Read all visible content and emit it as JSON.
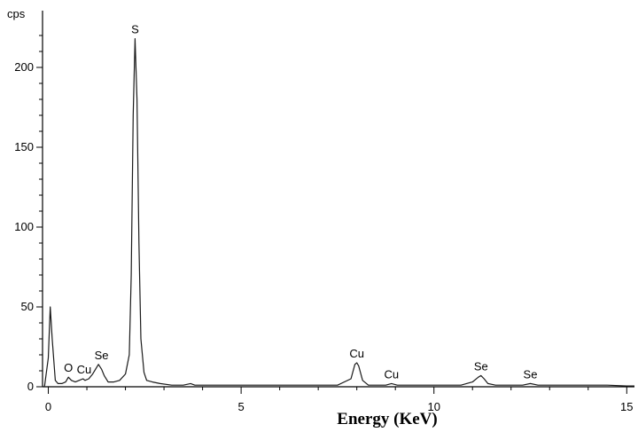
{
  "chart_data": {
    "type": "line",
    "title": "",
    "xlabel": "Energy (KeV)",
    "ylabel": "cps",
    "xlim": [
      -0.15,
      15.2
    ],
    "ylim": [
      0,
      220
    ],
    "x_ticks": [
      0,
      5,
      10,
      15
    ],
    "y_ticks": [
      0,
      50,
      100,
      150,
      200
    ],
    "grid": false,
    "legend": "none",
    "line_color": "#1a1a1a",
    "series": [
      {
        "x": [
          -0.1,
          0.0,
          0.05,
          0.1,
          0.18,
          0.25,
          0.35,
          0.45,
          0.52,
          0.6,
          0.7,
          0.8,
          0.9,
          0.95,
          1.05,
          1.15,
          1.25,
          1.3,
          1.38,
          1.45,
          1.55,
          1.7,
          1.85,
          2.0,
          2.1,
          2.15,
          2.2,
          2.25,
          2.3,
          2.35,
          2.4,
          2.48,
          2.55,
          2.7,
          2.9,
          3.2,
          3.5,
          3.69,
          3.8,
          4.0,
          4.5,
          5.0,
          5.5,
          6.0,
          6.5,
          7.0,
          7.5,
          7.85,
          7.95,
          8.0,
          8.05,
          8.15,
          8.3,
          8.5,
          8.75,
          8.9,
          9.05,
          9.3,
          9.7,
          10.2,
          10.7,
          11.0,
          11.15,
          11.22,
          11.3,
          11.4,
          11.6,
          12.0,
          12.3,
          12.5,
          12.7,
          13.0,
          13.5,
          14.0,
          14.5,
          15.0,
          15.2
        ],
        "y": [
          0,
          18,
          50,
          30,
          4,
          2,
          2,
          3,
          6,
          4,
          3,
          4,
          5,
          4,
          5,
          8,
          12,
          14,
          11,
          7,
          3,
          3,
          4,
          8,
          20,
          70,
          170,
          218,
          180,
          90,
          30,
          9,
          4,
          3,
          2,
          1,
          1,
          2,
          1,
          1,
          1,
          1,
          1,
          1,
          1,
          1,
          1,
          5,
          14,
          15,
          13,
          4,
          1,
          1,
          1,
          2,
          1,
          1,
          1,
          1,
          1,
          3,
          6,
          7,
          5,
          2,
          1,
          1,
          1,
          2,
          1,
          1,
          1,
          1,
          1,
          0.5,
          0.5
        ]
      }
    ],
    "annotations": [
      {
        "text": "S",
        "x": 2.25,
        "y": 218
      },
      {
        "text": "O",
        "x": 0.52,
        "y": 6
      },
      {
        "text": "Cu",
        "x": 0.93,
        "y": 5
      },
      {
        "text": "Se",
        "x": 1.38,
        "y": 14
      },
      {
        "text": "Cu",
        "x": 8.0,
        "y": 15
      },
      {
        "text": "Cu",
        "x": 8.9,
        "y": 2
      },
      {
        "text": "Se",
        "x": 11.22,
        "y": 7
      },
      {
        "text": "Se",
        "x": 12.5,
        "y": 2
      }
    ]
  }
}
